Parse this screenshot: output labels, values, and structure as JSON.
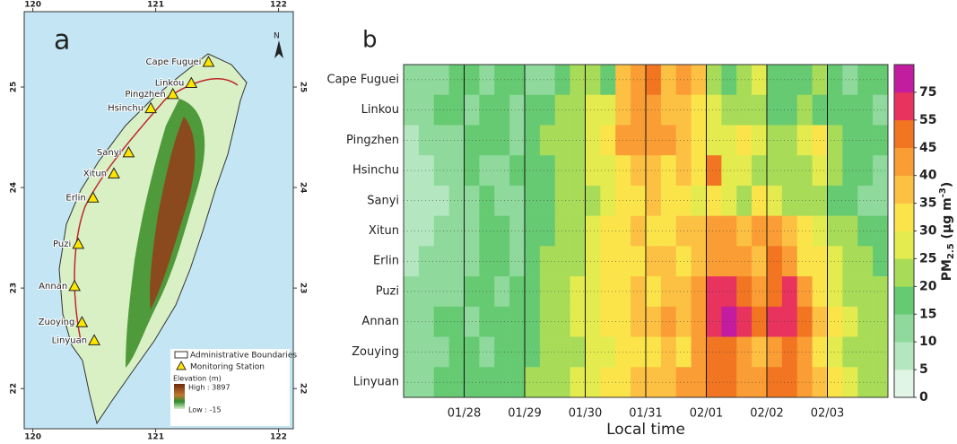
{
  "chart_data": [
    {
      "type": "map",
      "panel": "a",
      "xlim": [
        119.93,
        122.12
      ],
      "ylim": [
        21.6,
        25.75
      ],
      "xticks": [
        120,
        121,
        122
      ],
      "yticks": [
        22,
        23,
        24,
        25
      ],
      "north": "N",
      "points": [
        {
          "name": "Cape Fuguei",
          "lon": 121.43,
          "lat": 25.25
        },
        {
          "name": "Linkou",
          "lon": 121.29,
          "lat": 25.04
        },
        {
          "name": "Pingzhen",
          "lon": 121.14,
          "lat": 24.93
        },
        {
          "name": "Hsinchu",
          "lon": 120.96,
          "lat": 24.79
        },
        {
          "name": "Sanyi",
          "lon": 120.78,
          "lat": 24.35
        },
        {
          "name": "Xitun",
          "lon": 120.66,
          "lat": 24.14
        },
        {
          "name": "Erlin",
          "lon": 120.49,
          "lat": 23.9
        },
        {
          "name": "Puzi",
          "lon": 120.37,
          "lat": 23.44
        },
        {
          "name": "Annan",
          "lon": 120.34,
          "lat": 23.02
        },
        {
          "name": "Zuoying",
          "lon": 120.4,
          "lat": 22.66
        },
        {
          "name": "Linyuan",
          "lon": 120.5,
          "lat": 22.48
        }
      ],
      "legend": {
        "boundaries": "Administrative Boundaries",
        "station": "Monitoring Station",
        "elevation": "Elevation (m)",
        "high": "High : 3897",
        "low": "Low : -15"
      }
    },
    {
      "type": "heatmap",
      "panel": "b",
      "xlabel": "Local time",
      "categories": [
        "Cape Fuguei",
        "Linkou",
        "Pingzhen",
        "Hsinchu",
        "Sanyi",
        "Xitun",
        "Erlin",
        "Puzi",
        "Annan",
        "Zouying",
        "Linyuan"
      ],
      "xlim": [
        0,
        32
      ],
      "xticks": [
        {
          "value": 4,
          "label": "01/28"
        },
        {
          "value": 8,
          "label": "01/29"
        },
        {
          "value": 12,
          "label": "01/30"
        },
        {
          "value": 16,
          "label": "01/31"
        },
        {
          "value": 20,
          "label": "02/01"
        },
        {
          "value": 24,
          "label": "02/02"
        },
        {
          "value": 28,
          "label": "02/03"
        }
      ],
      "values": [
        [
          12,
          10,
          14,
          18,
          15,
          12,
          16,
          18,
          14,
          12,
          15,
          20,
          22,
          18,
          35,
          42,
          45,
          38,
          40,
          36,
          22,
          18,
          20,
          25,
          18,
          15,
          18,
          20,
          16,
          14,
          18,
          15
        ],
        [
          10,
          12,
          15,
          16,
          14,
          18,
          15,
          12,
          16,
          18,
          20,
          22,
          25,
          28,
          38,
          42,
          40,
          38,
          36,
          30,
          25,
          22,
          20,
          22,
          18,
          16,
          20,
          18,
          15,
          18,
          16,
          14
        ],
        [
          8,
          10,
          12,
          14,
          16,
          18,
          15,
          14,
          18,
          20,
          22,
          20,
          28,
          32,
          40,
          44,
          42,
          40,
          38,
          32,
          28,
          25,
          30,
          28,
          22,
          20,
          25,
          30,
          22,
          18,
          16,
          15
        ],
        [
          6,
          8,
          10,
          12,
          15,
          14,
          12,
          16,
          18,
          15,
          20,
          22,
          25,
          28,
          30,
          35,
          38,
          32,
          36,
          30,
          50,
          28,
          25,
          22,
          20,
          22,
          24,
          26,
          20,
          18,
          15,
          12
        ],
        [
          5,
          6,
          8,
          10,
          12,
          15,
          14,
          12,
          15,
          18,
          20,
          22,
          24,
          28,
          30,
          34,
          36,
          30,
          32,
          28,
          30,
          26,
          24,
          30,
          28,
          24,
          22,
          20,
          18,
          16,
          14,
          12
        ],
        [
          6,
          8,
          10,
          12,
          14,
          16,
          15,
          14,
          16,
          18,
          22,
          24,
          26,
          30,
          32,
          35,
          30,
          34,
          38,
          36,
          40,
          42,
          38,
          40,
          44,
          38,
          30,
          28,
          24,
          20,
          18,
          16
        ],
        [
          8,
          10,
          12,
          14,
          12,
          15,
          16,
          14,
          18,
          20,
          22,
          24,
          28,
          30,
          34,
          30,
          36,
          38,
          32,
          36,
          42,
          44,
          40,
          38,
          45,
          42,
          34,
          30,
          26,
          22,
          20,
          18
        ],
        [
          10,
          12,
          14,
          12,
          15,
          16,
          14,
          16,
          18,
          20,
          22,
          25,
          28,
          30,
          32,
          36,
          34,
          38,
          36,
          40,
          56,
          60,
          48,
          44,
          52,
          58,
          40,
          32,
          28,
          24,
          22,
          20
        ],
        [
          12,
          14,
          15,
          16,
          14,
          18,
          16,
          15,
          18,
          20,
          24,
          26,
          28,
          32,
          34,
          38,
          36,
          40,
          38,
          44,
          60,
          78,
          62,
          50,
          56,
          70,
          48,
          36,
          30,
          26,
          22,
          20
        ],
        [
          10,
          12,
          14,
          15,
          16,
          14,
          15,
          16,
          18,
          20,
          22,
          24,
          26,
          28,
          30,
          32,
          34,
          36,
          34,
          40,
          45,
          50,
          42,
          38,
          44,
          48,
          40,
          32,
          28,
          24,
          22,
          20
        ],
        [
          12,
          14,
          16,
          15,
          18,
          16,
          15,
          18,
          20,
          22,
          24,
          26,
          28,
          30,
          32,
          35,
          36,
          38,
          40,
          42,
          48,
          52,
          44,
          40,
          46,
          50,
          42,
          36,
          30,
          26,
          24,
          22
        ]
      ],
      "colorbar": {
        "ticks": [
          0,
          5,
          10,
          15,
          20,
          25,
          30,
          35,
          40,
          45,
          55,
          75
        ],
        "colors": [
          "#e0f5e6",
          "#b4e7bf",
          "#8ed99b",
          "#66ca72",
          "#a8dc58",
          "#e4eb4e",
          "#fbe44a",
          "#fcc043",
          "#f99d34",
          "#f27522",
          "#e8335e",
          "#c21d9e"
        ],
        "label": {
          "main": "PM",
          "sub": "2.5",
          "unit": " (μg m",
          "sup": "-3",
          "close": ")"
        }
      }
    }
  ]
}
